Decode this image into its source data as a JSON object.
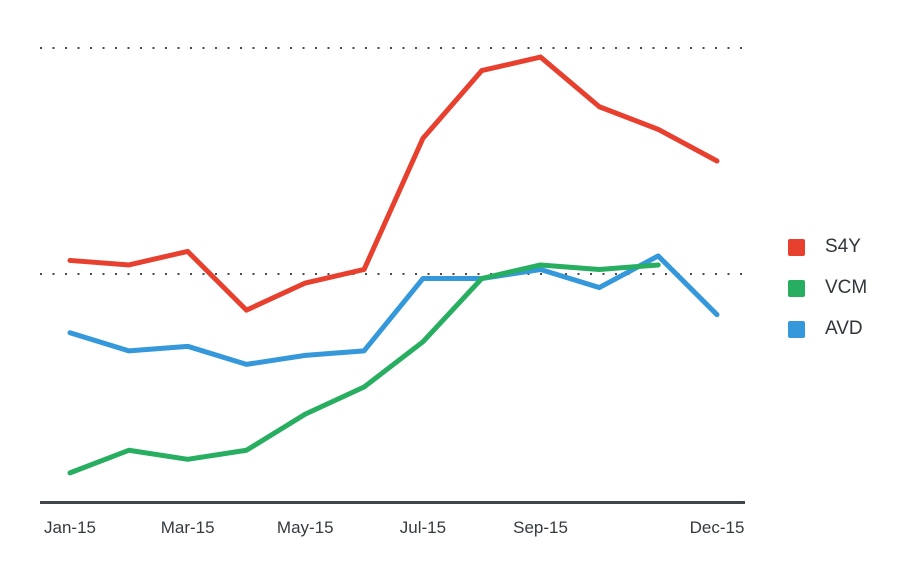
{
  "legend": {
    "items": [
      {
        "label": "S4Y",
        "color": "#e8402f"
      },
      {
        "label": "VCM",
        "color": "#27ae60"
      },
      {
        "label": "AVD",
        "color": "#3498db"
      }
    ]
  },
  "chart_data": {
    "type": "line",
    "title": "",
    "xlabel": "",
    "ylabel": "",
    "categories": [
      "Jan-15",
      "Feb-15",
      "Mar-15",
      "Apr-15",
      "May-15",
      "Jun-15",
      "Jul-15",
      "Aug-15",
      "Sep-15",
      "Oct-15",
      "Nov-15",
      "Dec-15"
    ],
    "x_tick_labels": [
      "Jan-15",
      "Mar-15",
      "May-15",
      "Jul-15",
      "Sep-15",
      "Dec-15"
    ],
    "x_tick_indices": [
      0,
      2,
      4,
      6,
      8,
      11
    ],
    "ylim": [
      0,
      100
    ],
    "gridline_values": [
      50,
      100
    ],
    "grid": "dotted-horizontal",
    "legend_position": "right",
    "series": [
      {
        "name": "S4Y",
        "color": "#e8402f",
        "values": [
          53,
          52,
          55,
          42,
          48,
          51,
          80,
          95,
          98,
          87,
          82,
          75
        ]
      },
      {
        "name": "VCM",
        "color": "#27ae60",
        "values": [
          6,
          11,
          9,
          11,
          19,
          25,
          35,
          49,
          52,
          51,
          52,
          null
        ]
      },
      {
        "name": "AVD",
        "color": "#3498db",
        "values": [
          37,
          33,
          34,
          30,
          32,
          33,
          49,
          49,
          51,
          47,
          54,
          41
        ]
      }
    ]
  }
}
